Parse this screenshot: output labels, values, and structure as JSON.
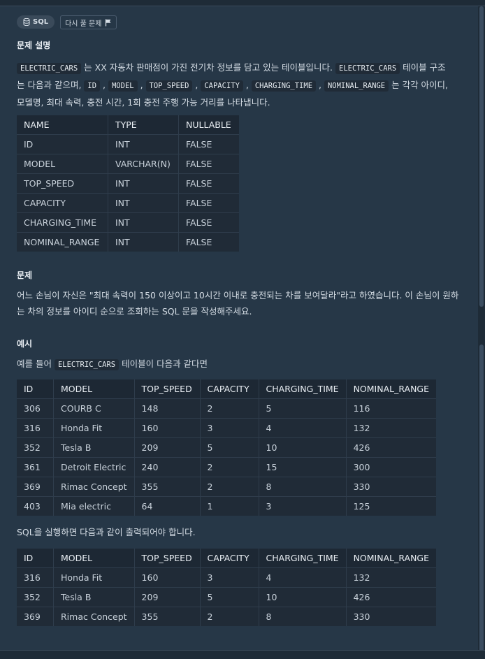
{
  "tags": {
    "sql_label": "SQL",
    "retry_label": "다시 풀 문제"
  },
  "description": {
    "heading": "문제 설명",
    "line1_pre": "",
    "code_table": "ELECTRIC_CARS",
    "line1_mid": " 는 XX 자동차 판매점이 가진 전기차 정보를 담고 있는 테이블입니다. ",
    "code_table2": "ELECTRIC_CARS",
    "line1_post": " 테이블 구조",
    "line2_pre": "는 다음과 같으며, ",
    "code_id": "ID",
    "code_model": "MODEL",
    "code_top_speed": "TOP_SPEED",
    "code_capacity": "CAPACITY",
    "code_charging_time": "CHARGING_TIME",
    "code_nominal_range": "NOMINAL_RANGE",
    "sep": " , ",
    "line2_post": " 는 각각 아이디,",
    "line3": "모델명, 최대 속력, 충전 시간, 1회 충전 주행 가능 거리를 나타냅니다."
  },
  "schema_table": {
    "headers": [
      "NAME",
      "TYPE",
      "NULLABLE"
    ],
    "rows": [
      [
        "ID",
        "INT",
        "FALSE"
      ],
      [
        "MODEL",
        "VARCHAR(N)",
        "FALSE"
      ],
      [
        "TOP_SPEED",
        "INT",
        "FALSE"
      ],
      [
        "CAPACITY",
        "INT",
        "FALSE"
      ],
      [
        "CHARGING_TIME",
        "INT",
        "FALSE"
      ],
      [
        "NOMINAL_RANGE",
        "INT",
        "FALSE"
      ]
    ]
  },
  "problem": {
    "heading": "문제",
    "line1": "어느 손님이 자신은 \"최대 속력이 150 이상이고 10시간 이내로 충전되는 차를 보여달라\"라고 하였습니다. 이 손님이 원하",
    "line2": "는 차의 정보를 아이디 순으로 조회하는 SQL 문을 작성해주세요."
  },
  "example": {
    "heading": "예시",
    "intro_pre": "예를 들어 ",
    "intro_code": "ELECTRIC_CARS",
    "intro_post": " 테이블이 다음과 같다면",
    "output_text": "SQL을 실행하면 다음과 같이 출력되어야 합니다."
  },
  "example_table": {
    "headers": [
      "ID",
      "MODEL",
      "TOP_SPEED",
      "CAPACITY",
      "CHARGING_TIME",
      "NOMINAL_RANGE"
    ],
    "rows": [
      [
        "306",
        "COURB C",
        "148",
        "2",
        "5",
        "116"
      ],
      [
        "316",
        "Honda Fit",
        "160",
        "3",
        "4",
        "132"
      ],
      [
        "352",
        "Tesla B",
        "209",
        "5",
        "10",
        "426"
      ],
      [
        "361",
        "Detroit Electric",
        "240",
        "2",
        "15",
        "300"
      ],
      [
        "369",
        "Rimac Concept",
        "355",
        "2",
        "8",
        "330"
      ],
      [
        "403",
        "Mia electric",
        "64",
        "1",
        "3",
        "125"
      ]
    ]
  },
  "result_table": {
    "headers": [
      "ID",
      "MODEL",
      "TOP_SPEED",
      "CAPACITY",
      "CHARGING_TIME",
      "NOMINAL_RANGE"
    ],
    "rows": [
      [
        "316",
        "Honda Fit",
        "160",
        "3",
        "4",
        "132"
      ],
      [
        "352",
        "Tesla B",
        "209",
        "5",
        "10",
        "426"
      ],
      [
        "369",
        "Rimac Concept",
        "355",
        "2",
        "8",
        "330"
      ]
    ]
  }
}
